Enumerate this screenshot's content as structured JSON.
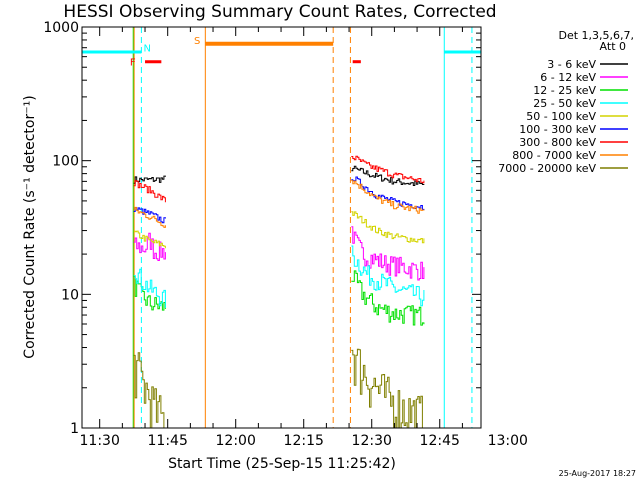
{
  "chart_data": {
    "type": "line",
    "title": "HESSI Observing Summary Count Rates, Corrected",
    "xlabel": "Start Time (25-Sep-15 11:25:42)",
    "ylabel": "Corrected Count Rate (s⁻¹ detector⁻¹)",
    "yscale": "log",
    "ylim": [
      1,
      1000
    ],
    "xlim_minutes": [
      11.1,
      99.1
    ],
    "x_tick_labels": [
      "11:30",
      "11:45",
      "12:00",
      "12:15",
      "12:30",
      "12:45",
      "13:00"
    ],
    "x_tick_minutes": [
      15,
      30,
      45,
      60,
      75,
      90,
      105
    ],
    "y_tick_labels": [
      "1",
      "10",
      "100",
      "1000"
    ],
    "y_tick_values": [
      1,
      10,
      100,
      1000
    ],
    "legend_title": "Det 1,3,5,6,7,",
    "legend_subtitle": "Att 0",
    "legend_placement": "right",
    "segments": [
      {
        "t0": 22.5,
        "t1": 29.5
      },
      {
        "t0": 70.5,
        "t1": 86.5
      }
    ],
    "series": [
      {
        "name": "3 - 6 keV",
        "color": "#000000",
        "seg1": [
          [
            22.5,
            72
          ],
          [
            26,
            72
          ],
          [
            29.5,
            73
          ]
        ],
        "seg2": [
          [
            70.5,
            88
          ],
          [
            76,
            76
          ],
          [
            80,
            70
          ],
          [
            86.5,
            66
          ]
        ]
      },
      {
        "name": "6 - 12 keV",
        "color": "#ff00ff",
        "seg1": [
          [
            22.5,
            23
          ],
          [
            25,
            22
          ],
          [
            26,
            26
          ],
          [
            27,
            21
          ],
          [
            29.5,
            21
          ]
        ],
        "seg2": [
          [
            70.5,
            31
          ],
          [
            71,
            26
          ],
          [
            73,
            20
          ],
          [
            78,
            17
          ],
          [
            86.5,
            15
          ]
        ]
      },
      {
        "name": "12 - 25 keV",
        "color": "#00e000",
        "seg1": [
          [
            22.5,
            12
          ],
          [
            24,
            10
          ],
          [
            26,
            8.5
          ],
          [
            29.5,
            8
          ]
        ],
        "seg2": [
          [
            70.5,
            14
          ],
          [
            73,
            10
          ],
          [
            76,
            8
          ],
          [
            80,
            7.2
          ],
          [
            86.5,
            7
          ]
        ]
      },
      {
        "name": "25 - 50 keV",
        "color": "#00ffff",
        "seg1": [
          [
            22.5,
            16
          ],
          [
            24,
            13
          ],
          [
            26,
            11
          ],
          [
            29.5,
            9
          ]
        ],
        "seg2": [
          [
            70.5,
            20
          ],
          [
            74,
            14
          ],
          [
            80,
            11
          ],
          [
            86.5,
            9.5
          ]
        ]
      },
      {
        "name": "50 - 100 keV",
        "color": "#d4d400",
        "seg1": [
          [
            22.5,
            29
          ],
          [
            26,
            25
          ],
          [
            29.5,
            23
          ]
        ],
        "seg2": [
          [
            70.5,
            41
          ],
          [
            76,
            30
          ],
          [
            80,
            27
          ],
          [
            86.5,
            25
          ]
        ]
      },
      {
        "name": "100 - 300 keV",
        "color": "#0000ff",
        "seg1": [
          [
            22.5,
            44
          ],
          [
            26,
            40
          ],
          [
            29.5,
            35
          ]
        ],
        "seg2": [
          [
            70.5,
            76
          ],
          [
            76,
            55
          ],
          [
            80,
            49
          ],
          [
            86.5,
            45
          ]
        ]
      },
      {
        "name": "300 - 800 keV",
        "color": "#ff0000",
        "seg1": [
          [
            22.5,
            69
          ],
          [
            26,
            60
          ],
          [
            29.5,
            50
          ]
        ],
        "seg2": [
          [
            70.5,
            108
          ],
          [
            74,
            92
          ],
          [
            80,
            78
          ],
          [
            86.5,
            70
          ]
        ]
      },
      {
        "name": "800 - 7000 keV",
        "color": "#ff8000",
        "seg1": [
          [
            22.5,
            43
          ],
          [
            26,
            38
          ],
          [
            29.5,
            33
          ]
        ],
        "seg2": [
          [
            70.5,
            72
          ],
          [
            76,
            52
          ],
          [
            80,
            46
          ],
          [
            86.5,
            42
          ]
        ]
      },
      {
        "name": "7000 - 20000 keV",
        "color": "#7f7f00",
        "seg1": [
          [
            22.5,
            3
          ],
          [
            25,
            2
          ],
          [
            27,
            1.4
          ],
          [
            29.5,
            1.1
          ]
        ],
        "seg2": [
          [
            70.5,
            4
          ],
          [
            72,
            3
          ],
          [
            76,
            2
          ],
          [
            80,
            1.5
          ],
          [
            86.5,
            1.2
          ]
        ]
      }
    ],
    "night_regions": [
      {
        "t0": 11.1,
        "t1": 24.2,
        "level": 650
      },
      {
        "t0": 91.0,
        "t1": 99.1,
        "level": 650
      }
    ],
    "saa_region": {
      "t0": 38.3,
      "t1": 66.5,
      "level": 750
    },
    "vlines": [
      {
        "t": 22.4,
        "color": "#00e000",
        "dash": false
      },
      {
        "t": 22.6,
        "color": "#ff8000",
        "dash": false
      },
      {
        "t": 24.2,
        "color": "#00ffff",
        "dash": true
      },
      {
        "t": 38.3,
        "color": "#ff8000",
        "dash": false
      },
      {
        "t": 66.5,
        "color": "#ff8000",
        "dash": true
      },
      {
        "t": 70.3,
        "color": "#ff8000",
        "dash": true
      },
      {
        "t": 91.0,
        "color": "#00ffff",
        "dash": false
      },
      {
        "t": 97.1,
        "color": "#00ffff",
        "dash": true
      }
    ],
    "flags": [
      {
        "label": "F",
        "color": "#ff0000",
        "t": 22.3,
        "y": 550
      },
      {
        "label": "N",
        "color": "#00ffff",
        "t": 25.5,
        "y": 700
      },
      {
        "label": "S",
        "color": "#ff8000",
        "t": 36.5,
        "y": 800
      }
    ],
    "flare_bars": [
      {
        "t0": 25.0,
        "t1": 28.6,
        "color": "#ff0000",
        "level": 550
      },
      {
        "t0": 70.8,
        "t1": 72.6,
        "color": "#ff0000",
        "level": 550
      }
    ],
    "footer_date": "25-Aug-2017 18:27"
  }
}
